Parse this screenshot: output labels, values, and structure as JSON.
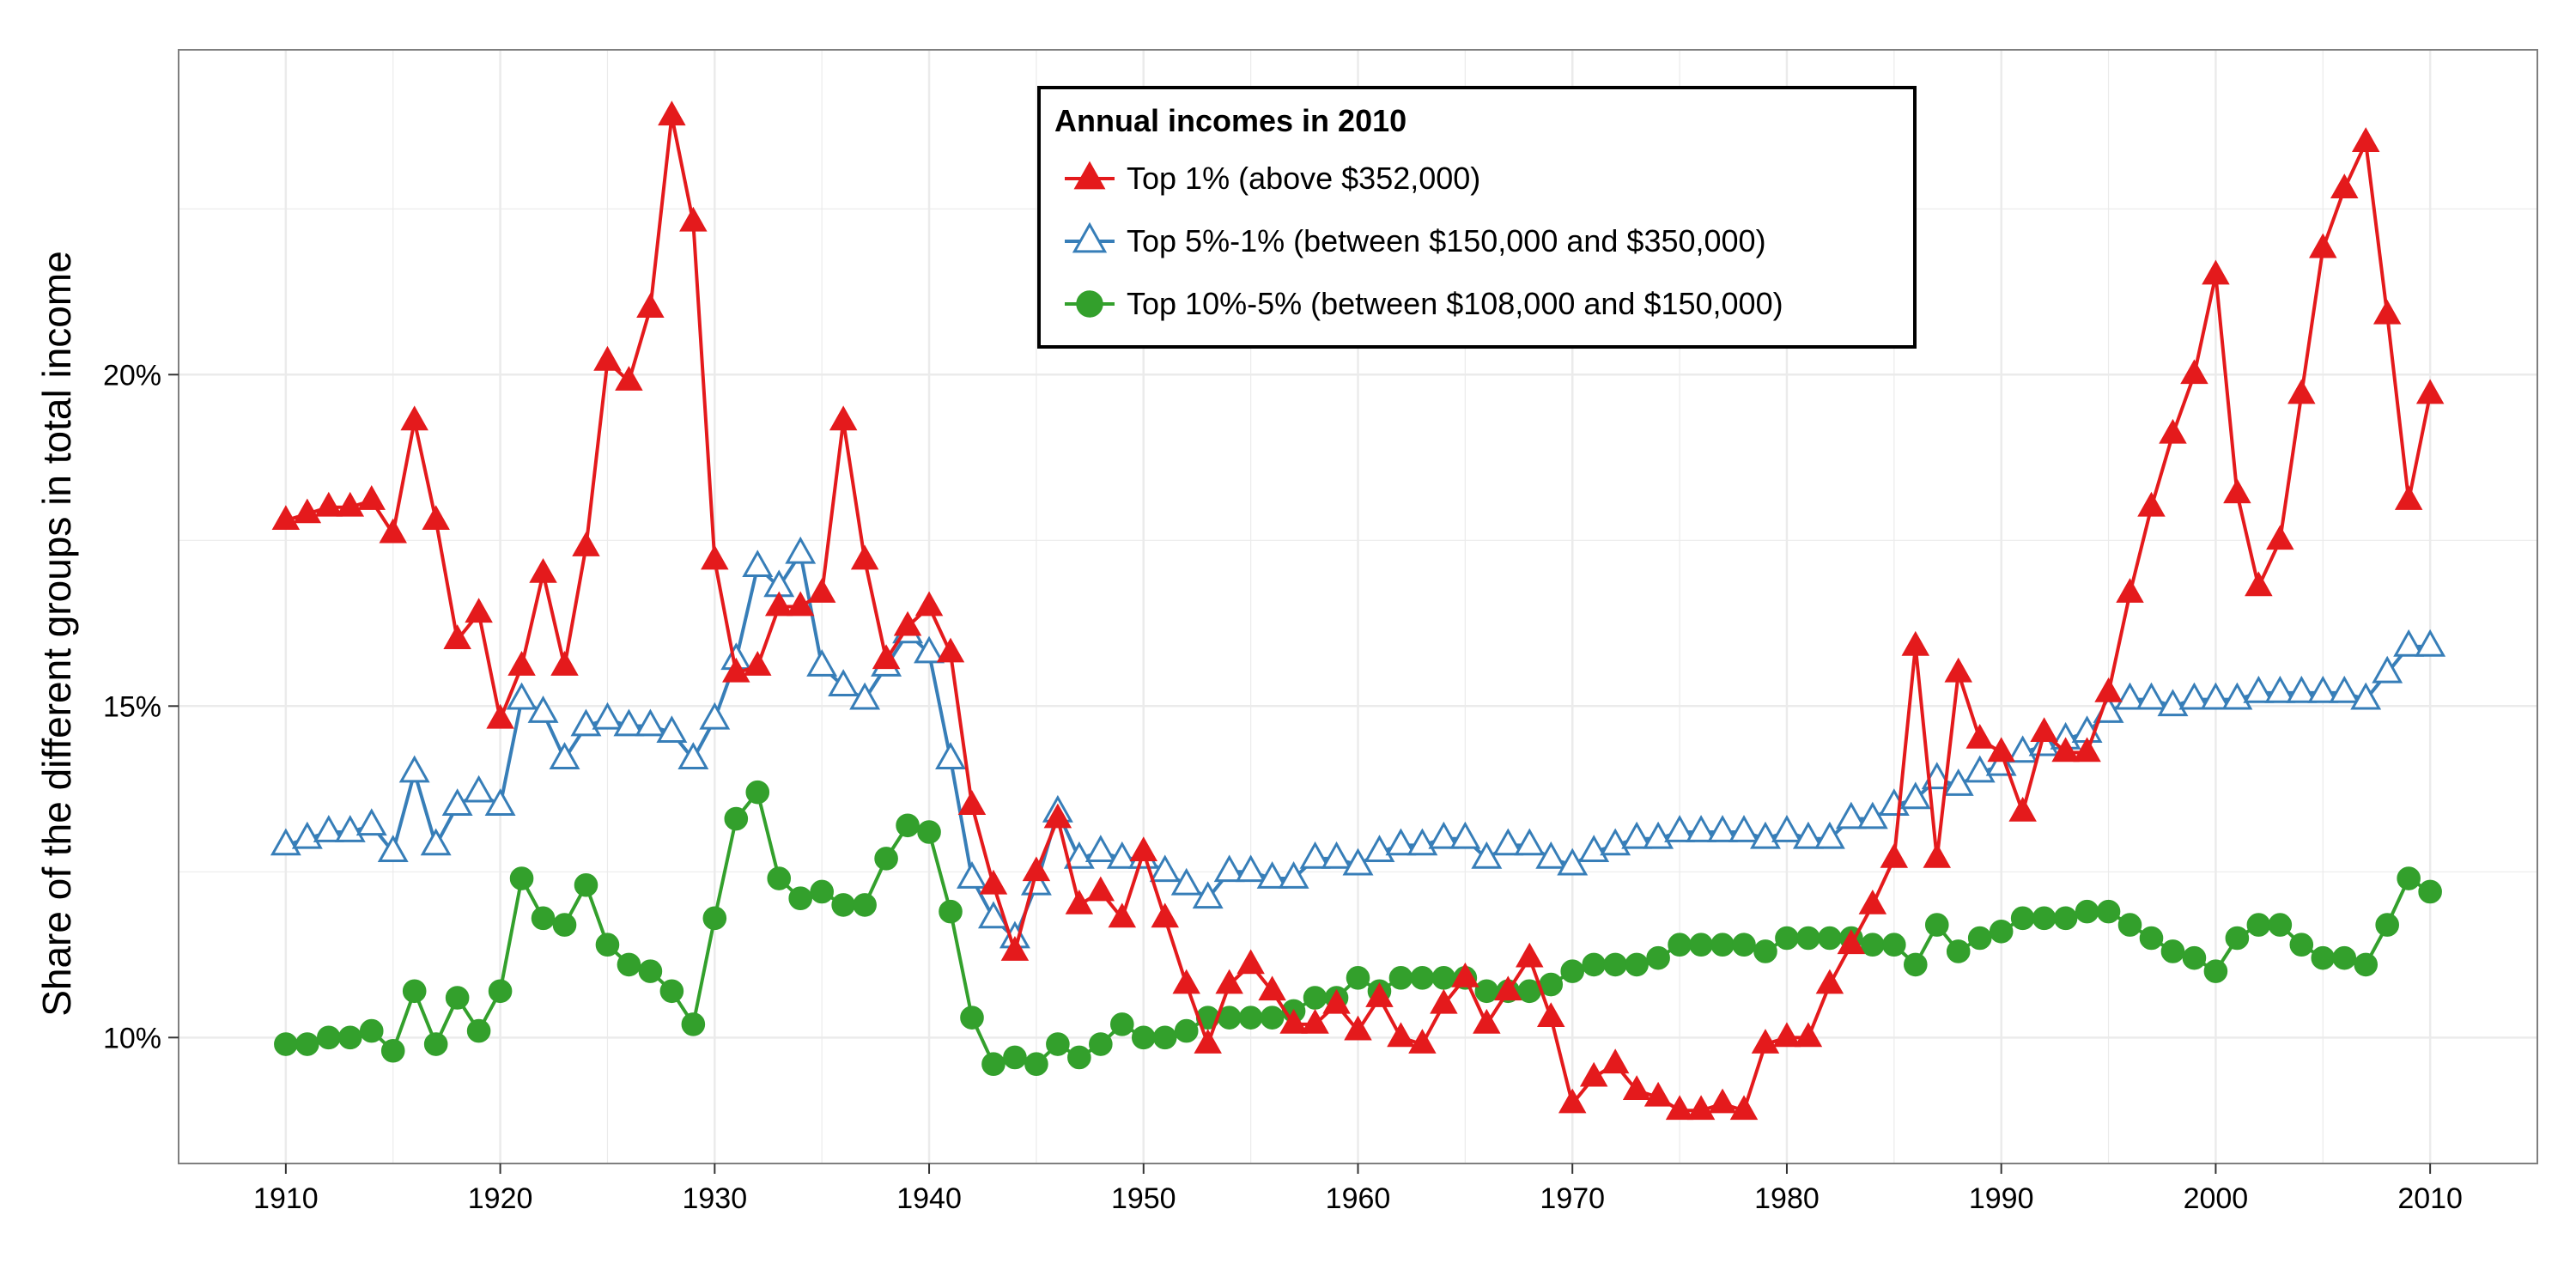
{
  "chart_data": {
    "type": "line",
    "ylabel": "Share of the different groups in total income",
    "xlabel": "",
    "xlim": [
      1905,
      2015
    ],
    "ylim": [
      8.1,
      24.9
    ],
    "x_ticks": [
      1910,
      1920,
      1930,
      1940,
      1950,
      1960,
      1970,
      1980,
      1990,
      2000,
      2010
    ],
    "y_ticks": [
      10,
      15,
      20
    ],
    "y_tick_labels": [
      "10%",
      "15%",
      "20%"
    ],
    "grid": true,
    "legend": {
      "title": "Annual incomes in 2010",
      "position": "top-center"
    },
    "x": [
      1910,
      1911,
      1912,
      1913,
      1914,
      1915,
      1916,
      1917,
      1918,
      1919,
      1920,
      1921,
      1922,
      1923,
      1924,
      1925,
      1926,
      1927,
      1928,
      1929,
      1930,
      1931,
      1932,
      1933,
      1934,
      1935,
      1936,
      1937,
      1938,
      1939,
      1940,
      1941,
      1942,
      1943,
      1944,
      1945,
      1946,
      1947,
      1948,
      1949,
      1950,
      1951,
      1952,
      1953,
      1954,
      1955,
      1956,
      1957,
      1958,
      1959,
      1960,
      1961,
      1962,
      1963,
      1964,
      1965,
      1966,
      1967,
      1968,
      1969,
      1970,
      1971,
      1972,
      1973,
      1974,
      1975,
      1976,
      1977,
      1978,
      1979,
      1980,
      1981,
      1982,
      1983,
      1984,
      1985,
      1986,
      1987,
      1988,
      1989,
      1990,
      1991,
      1992,
      1993,
      1994,
      1995,
      1996,
      1997,
      1998,
      1999,
      2000,
      2001,
      2002,
      2003,
      2004,
      2005,
      2006,
      2007,
      2008,
      2009,
      2010
    ],
    "series": [
      {
        "name": "Top 1% (above $352,000)",
        "color": "#e41a1c",
        "marker": "filled-triangle",
        "values": [
          17.8,
          17.9,
          18.0,
          18.0,
          18.1,
          17.6,
          19.3,
          17.8,
          16.0,
          16.4,
          14.8,
          15.6,
          17.0,
          15.6,
          17.4,
          20.2,
          19.9,
          21.0,
          23.9,
          22.3,
          17.2,
          15.5,
          15.6,
          16.5,
          16.5,
          16.7,
          19.3,
          17.2,
          15.7,
          16.2,
          16.5,
          15.8,
          13.5,
          12.3,
          11.3,
          12.5,
          13.3,
          12.0,
          12.2,
          11.8,
          12.8,
          11.8,
          10.8,
          9.9,
          10.8,
          11.1,
          10.7,
          10.2,
          10.2,
          10.5,
          10.1,
          10.6,
          10.0,
          9.9,
          10.5,
          10.9,
          10.2,
          10.7,
          11.2,
          10.3,
          9.0,
          9.4,
          9.6,
          9.2,
          9.1,
          8.9,
          8.9,
          9.0,
          8.9,
          9.9,
          10.0,
          10.0,
          10.8,
          11.4,
          12.0,
          12.7,
          15.9,
          12.7,
          15.5,
          14.5,
          14.3,
          13.4,
          14.6,
          14.3,
          14.3,
          15.2,
          16.7,
          18.0,
          19.1,
          20.0,
          21.5,
          18.2,
          16.8,
          17.5,
          19.7,
          21.9,
          22.8,
          23.5,
          20.9,
          18.1,
          19.7
        ]
      },
      {
        "name": "Top 5%-1% (between $150,000 and $350,000)",
        "color": "#377eb8",
        "marker": "open-triangle",
        "values": [
          12.9,
          13.0,
          13.1,
          13.1,
          13.2,
          12.8,
          14.0,
          12.9,
          13.5,
          13.7,
          13.5,
          15.1,
          14.9,
          14.2,
          14.7,
          14.8,
          14.7,
          14.7,
          14.6,
          14.2,
          14.8,
          15.7,
          17.1,
          16.8,
          17.3,
          15.6,
          15.3,
          15.1,
          15.6,
          16.1,
          15.8,
          14.2,
          12.4,
          11.8,
          11.5,
          12.3,
          13.4,
          12.7,
          12.8,
          12.7,
          12.7,
          12.5,
          12.3,
          12.1,
          12.5,
          12.5,
          12.4,
          12.4,
          12.7,
          12.7,
          12.6,
          12.8,
          12.9,
          12.9,
          13.0,
          13.0,
          12.7,
          12.9,
          12.9,
          12.7,
          12.6,
          12.8,
          12.9,
          13.0,
          13.0,
          13.1,
          13.1,
          13.1,
          13.1,
          13.0,
          13.1,
          13.0,
          13.0,
          13.3,
          13.3,
          13.5,
          13.6,
          13.9,
          13.8,
          14.0,
          14.1,
          14.3,
          14.4,
          14.5,
          14.6,
          14.9,
          15.1,
          15.1,
          15.0,
          15.1,
          15.1,
          15.1,
          15.2,
          15.2,
          15.2,
          15.2,
          15.2,
          15.1,
          15.5,
          15.9,
          15.9
        ]
      },
      {
        "name": "Top 10%-5% (between $108,000 and $150,000)",
        "color": "#33a02c",
        "marker": "filled-circle",
        "values": [
          9.9,
          9.9,
          10.0,
          10.0,
          10.1,
          9.8,
          10.7,
          9.9,
          10.6,
          10.1,
          10.7,
          12.4,
          11.8,
          11.7,
          12.3,
          11.4,
          11.1,
          11.0,
          10.7,
          10.2,
          11.8,
          13.3,
          13.7,
          12.4,
          12.1,
          12.2,
          12.0,
          12.0,
          12.7,
          13.2,
          13.1,
          11.9,
          10.3,
          9.6,
          9.7,
          9.6,
          9.9,
          9.7,
          9.9,
          10.2,
          10.0,
          10.0,
          10.1,
          10.3,
          10.3,
          10.3,
          10.3,
          10.4,
          10.6,
          10.6,
          10.9,
          10.7,
          10.9,
          10.9,
          10.9,
          10.9,
          10.7,
          10.7,
          10.7,
          10.8,
          11.0,
          11.1,
          11.1,
          11.1,
          11.2,
          11.4,
          11.4,
          11.4,
          11.4,
          11.3,
          11.5,
          11.5,
          11.5,
          11.5,
          11.4,
          11.4,
          11.1,
          11.7,
          11.3,
          11.5,
          11.6,
          11.8,
          11.8,
          11.8,
          11.9,
          11.9,
          11.7,
          11.5,
          11.3,
          11.2,
          11.0,
          11.5,
          11.7,
          11.7,
          11.4,
          11.2,
          11.2,
          11.1,
          11.7,
          12.4,
          12.2
        ]
      }
    ]
  },
  "colors": {
    "top1": "#e41a1c",
    "top5_1": "#377eb8",
    "top10_5": "#33a02c",
    "grid": "#ebebeb",
    "panel_border": "#7f7f7f"
  }
}
